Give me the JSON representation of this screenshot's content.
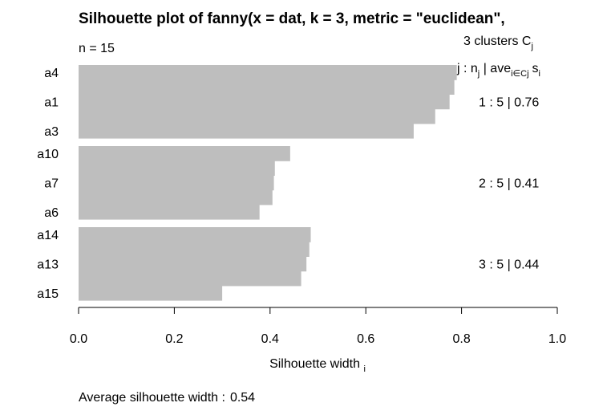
{
  "chart_data": {
    "type": "bar",
    "orientation": "horizontal",
    "title": "Silhouette plot of fanny(x = dat, k = 3, metric = \"euclidean\",",
    "n_label": "n = 15",
    "xlabel": "Silhouette width",
    "xlabel_sub": "i",
    "xlim": [
      0,
      1
    ],
    "xticks": [
      0.0,
      0.2,
      0.4,
      0.6,
      0.8,
      1.0
    ],
    "xtick_labels": [
      "0.0",
      "0.2",
      "0.4",
      "0.6",
      "0.8",
      "1.0"
    ],
    "bar_color": "#bebebe",
    "clusters_header": {
      "line1": "3  clusters  C",
      "line1_sub": "j",
      "line2_prefix": "j :  n",
      "line2_sub_n": "j",
      "line2_mid": " | ave",
      "line2_sub_ave": "i∈Cj",
      "line2_suffix": "s",
      "line2_sub_s": "i"
    },
    "clusters": [
      {
        "summary": "1 :   5  |  0.76",
        "bars": [
          {
            "label": "a4",
            "value": 0.79
          },
          {
            "label": "",
            "value": 0.785
          },
          {
            "label": "a1",
            "value": 0.775
          },
          {
            "label": "",
            "value": 0.745
          },
          {
            "label": "a3",
            "value": 0.7
          }
        ]
      },
      {
        "summary": "2 :   5  |  0.41",
        "bars": [
          {
            "label": "a10",
            "value": 0.442
          },
          {
            "label": "",
            "value": 0.41
          },
          {
            "label": "a7",
            "value": 0.408
          },
          {
            "label": "",
            "value": 0.405
          },
          {
            "label": "a6",
            "value": 0.378
          }
        ]
      },
      {
        "summary": "3 :   5  |  0.44",
        "bars": [
          {
            "label": "a14",
            "value": 0.485
          },
          {
            "label": "",
            "value": 0.482
          },
          {
            "label": "a13",
            "value": 0.476
          },
          {
            "label": "",
            "value": 0.465
          },
          {
            "label": "a15",
            "value": 0.3
          }
        ]
      }
    ],
    "average_label": "Average silhouette width :",
    "average_value": "0.54"
  }
}
